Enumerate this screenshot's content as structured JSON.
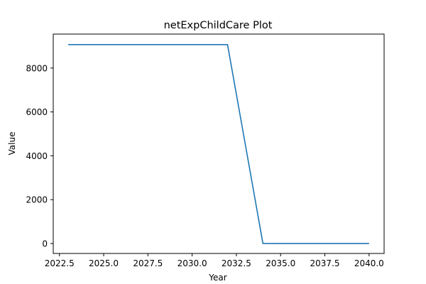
{
  "chart_data": {
    "type": "line",
    "title": "netExpChildCare Plot",
    "xlabel": "Year",
    "ylabel": "Value",
    "xlim": [
      2022.15,
      2040.85
    ],
    "ylim": [
      -455,
      9550
    ],
    "x_ticks": [
      2022.5,
      2025.0,
      2027.5,
      2030.0,
      2032.5,
      2035.0,
      2037.5,
      2040.0
    ],
    "x_tick_labels": [
      "2022.5",
      "2025.0",
      "2027.5",
      "2030.0",
      "2032.5",
      "2035.0",
      "2037.5",
      "2040.0"
    ],
    "y_ticks": [
      0,
      2000,
      4000,
      6000,
      8000
    ],
    "y_tick_labels": [
      "0",
      "2000",
      "4000",
      "6000",
      "8000"
    ],
    "grid": false,
    "series": [
      {
        "color": "#1f77b4",
        "x": [
          2023,
          2024,
          2025,
          2026,
          2027,
          2028,
          2029,
          2030,
          2031,
          2032,
          2033,
          2034,
          2035,
          2036,
          2037,
          2038,
          2039,
          2040
        ],
        "y": [
          9070,
          9070,
          9070,
          9070,
          9070,
          9070,
          9070,
          9070,
          9070,
          9070,
          4540,
          0,
          0,
          0,
          0,
          0,
          0,
          0
        ]
      }
    ]
  }
}
